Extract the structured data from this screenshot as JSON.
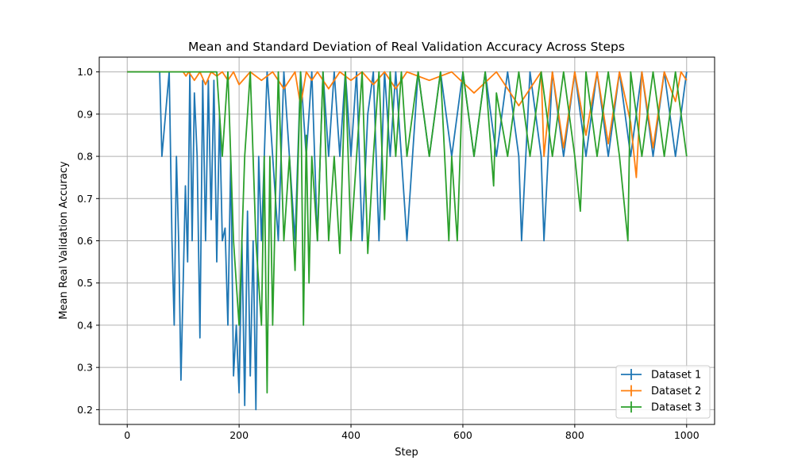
{
  "chart_data": {
    "type": "line",
    "title": "Mean and Standard Deviation of Real Validation Accuracy Across Steps",
    "xlabel": "Step",
    "ylabel": "Mean Real Validation Accuracy",
    "xlim": [
      -50,
      1050
    ],
    "ylim": [
      0.165,
      1.035
    ],
    "xticks": [
      0,
      200,
      400,
      600,
      800,
      1000
    ],
    "yticks": [
      0.2,
      0.3,
      0.4,
      0.5,
      0.6,
      0.7,
      0.8,
      0.9,
      1.0
    ],
    "xtick_labels": [
      "0",
      "200",
      "400",
      "600",
      "800",
      "1000"
    ],
    "ytick_labels": [
      "0.2",
      "0.3",
      "0.4",
      "0.5",
      "0.6",
      "0.7",
      "0.8",
      "0.9",
      "1.0"
    ],
    "grid": true,
    "legend_position": "bottom-right",
    "series": [
      {
        "name": "Dataset 1",
        "color": "#1f77b4",
        "x": [
          0,
          58,
          62,
          75,
          80,
          84,
          88,
          92,
          96,
          100,
          104,
          108,
          112,
          116,
          120,
          125,
          130,
          135,
          140,
          145,
          150,
          155,
          160,
          165,
          170,
          175,
          180,
          185,
          190,
          195,
          200,
          205,
          210,
          215,
          220,
          225,
          230,
          235,
          240,
          250,
          260,
          270,
          280,
          290,
          300,
          310,
          320,
          330,
          340,
          350,
          360,
          370,
          380,
          390,
          400,
          410,
          420,
          430,
          440,
          450,
          460,
          470,
          480,
          490,
          500,
          520,
          540,
          560,
          580,
          600,
          620,
          640,
          660,
          680,
          700,
          705,
          720,
          740,
          745,
          760,
          780,
          800,
          820,
          840,
          860,
          880,
          900,
          920,
          940,
          960,
          980,
          1000
        ],
        "y": [
          1.0,
          1.0,
          0.8,
          1.0,
          0.6,
          0.4,
          0.8,
          0.6,
          0.27,
          0.5,
          0.73,
          0.55,
          1.0,
          0.6,
          0.95,
          0.8,
          0.37,
          0.98,
          0.6,
          0.98,
          0.65,
          0.98,
          0.55,
          0.9,
          0.6,
          0.63,
          0.4,
          0.8,
          0.28,
          0.4,
          0.24,
          0.6,
          0.21,
          0.67,
          0.28,
          0.6,
          0.2,
          0.8,
          0.6,
          1.0,
          0.8,
          0.6,
          1.0,
          0.8,
          0.6,
          1.0,
          0.8,
          1.0,
          0.6,
          1.0,
          0.8,
          1.0,
          0.8,
          1.0,
          0.8,
          1.0,
          0.6,
          0.9,
          1.0,
          0.6,
          1.0,
          0.8,
          1.0,
          0.8,
          0.6,
          1.0,
          0.8,
          1.0,
          0.8,
          1.0,
          0.8,
          1.0,
          0.8,
          1.0,
          0.8,
          0.6,
          1.0,
          0.8,
          0.6,
          1.0,
          0.8,
          1.0,
          0.8,
          1.0,
          0.8,
          1.0,
          0.8,
          1.0,
          0.8,
          1.0,
          0.8,
          1.0
        ]
      },
      {
        "name": "Dataset 2",
        "color": "#ff7f0e",
        "x": [
          0,
          100,
          105,
          110,
          120,
          130,
          140,
          150,
          160,
          170,
          180,
          190,
          200,
          220,
          240,
          260,
          280,
          300,
          310,
          320,
          330,
          340,
          360,
          380,
          400,
          420,
          440,
          460,
          480,
          500,
          540,
          580,
          620,
          660,
          700,
          740,
          745,
          760,
          780,
          800,
          820,
          840,
          860,
          880,
          900,
          910,
          920,
          940,
          960,
          980,
          990,
          1000
        ],
        "y": [
          1.0,
          1.0,
          0.99,
          1.0,
          0.98,
          1.0,
          0.97,
          1.0,
          0.99,
          1.0,
          0.98,
          1.0,
          0.97,
          1.0,
          0.98,
          1.0,
          0.96,
          1.0,
          0.92,
          1.0,
          0.98,
          1.0,
          0.96,
          1.0,
          0.98,
          1.0,
          0.97,
          1.0,
          0.96,
          1.0,
          0.98,
          1.0,
          0.95,
          1.0,
          0.92,
          1.0,
          0.8,
          1.0,
          0.82,
          1.0,
          0.85,
          1.0,
          0.83,
          1.0,
          0.88,
          0.75,
          1.0,
          0.82,
          1.0,
          0.93,
          1.0,
          0.98
        ]
      },
      {
        "name": "Dataset 3",
        "color": "#2ca02c",
        "x": [
          0,
          160,
          170,
          180,
          190,
          200,
          210,
          220,
          230,
          240,
          245,
          250,
          255,
          260,
          270,
          280,
          290,
          300,
          310,
          315,
          320,
          325,
          330,
          340,
          350,
          360,
          370,
          380,
          390,
          400,
          410,
          420,
          430,
          440,
          450,
          460,
          470,
          480,
          490,
          500,
          520,
          540,
          560,
          575,
          580,
          590,
          600,
          620,
          640,
          655,
          660,
          680,
          700,
          720,
          740,
          760,
          780,
          800,
          810,
          820,
          840,
          860,
          880,
          895,
          900,
          920,
          940,
          960,
          980,
          1000
        ],
        "y": [
          1.0,
          1.0,
          0.8,
          1.0,
          0.6,
          0.4,
          0.8,
          1.0,
          0.6,
          0.4,
          0.8,
          0.24,
          0.8,
          0.4,
          1.0,
          0.6,
          0.8,
          0.53,
          1.0,
          0.4,
          0.85,
          0.5,
          0.8,
          0.6,
          1.0,
          0.6,
          0.8,
          0.57,
          1.0,
          0.6,
          0.8,
          1.0,
          0.57,
          0.8,
          1.0,
          0.65,
          1.0,
          0.8,
          1.0,
          0.8,
          1.0,
          0.8,
          1.0,
          0.6,
          0.8,
          0.6,
          1.0,
          0.8,
          1.0,
          0.73,
          0.95,
          0.8,
          1.0,
          0.8,
          1.0,
          0.8,
          1.0,
          0.8,
          0.67,
          1.0,
          0.8,
          1.0,
          0.8,
          0.6,
          1.0,
          0.8,
          1.0,
          0.8,
          1.0,
          0.8
        ]
      }
    ]
  }
}
